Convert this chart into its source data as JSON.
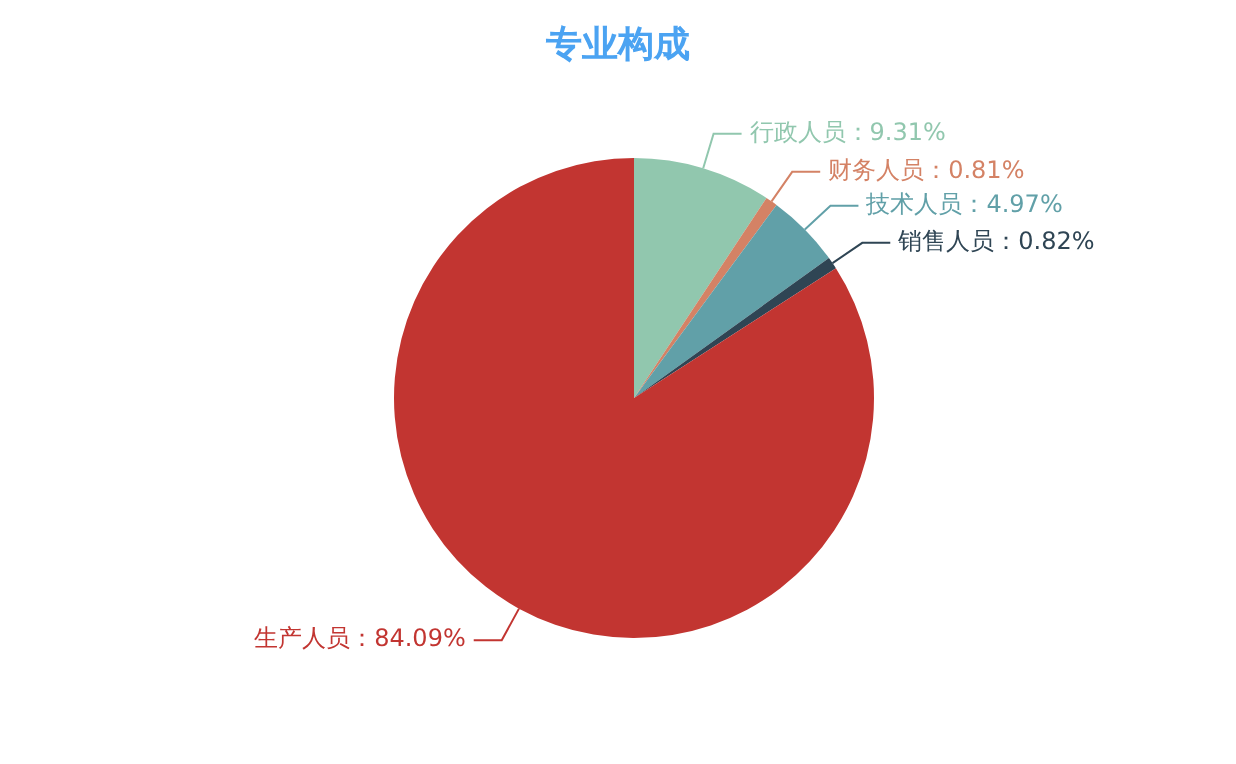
{
  "chart_data": {
    "type": "pie",
    "title": "专业构成",
    "categories": [
      "行政人员",
      "财务人员",
      "技术人员",
      "销售人员",
      "生产人员"
    ],
    "values": [
      9.31,
      0.81,
      4.97,
      0.82,
      84.09
    ],
    "colors": [
      "#91c7ae",
      "#d48265",
      "#61a0a8",
      "#2f4554",
      "#c23531"
    ],
    "value_labels": [
      "9.31%",
      "0.81%",
      "4.97%",
      "0.82%",
      "84.09%"
    ],
    "legend": false
  }
}
